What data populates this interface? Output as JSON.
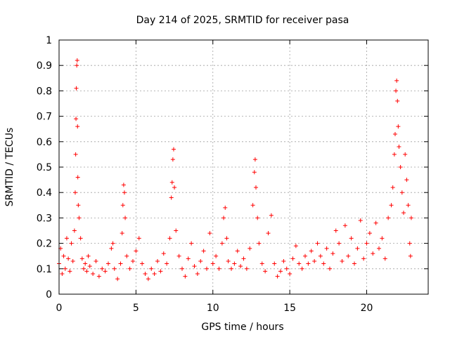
{
  "chart_data": {
    "type": "scatter",
    "title": "Day 214 of 2025, SRMTID for receiver pasa",
    "xlabel": "GPS time / hours",
    "ylabel": "SRMTID / TECUs",
    "xlim": [
      0,
      24
    ],
    "ylim": [
      0,
      1
    ],
    "xticks": [
      0,
      5,
      10,
      15,
      20
    ],
    "xtick_labels": [
      "0",
      "5",
      "10",
      "15",
      "20"
    ],
    "yticks": [
      0,
      0.1,
      0.2,
      0.3,
      0.4,
      0.5,
      0.6,
      0.7,
      0.8,
      0.9,
      1
    ],
    "ytick_labels": [
      "0",
      "0.1",
      "0.2",
      "0.3",
      "0.4",
      "0.5",
      "0.6",
      "0.7",
      "0.8",
      "0.9",
      "1"
    ],
    "grid": true,
    "marker": "+",
    "color": "#ff0000",
    "series": [
      {
        "name": "SRMTID",
        "points": [
          [
            0.0,
            0.12
          ],
          [
            0.1,
            0.18
          ],
          [
            0.2,
            0.08
          ],
          [
            0.3,
            0.15
          ],
          [
            0.4,
            0.1
          ],
          [
            0.5,
            0.22
          ],
          [
            0.6,
            0.14
          ],
          [
            0.7,
            0.09
          ],
          [
            0.8,
            0.2
          ],
          [
            0.9,
            0.13
          ],
          [
            1.0,
            0.25
          ],
          [
            1.05,
            0.4
          ],
          [
            1.08,
            0.55
          ],
          [
            1.1,
            0.69
          ],
          [
            1.12,
            0.81
          ],
          [
            1.15,
            0.9
          ],
          [
            1.18,
            0.92
          ],
          [
            1.2,
            0.66
          ],
          [
            1.22,
            0.46
          ],
          [
            1.25,
            0.35
          ],
          [
            1.3,
            0.3
          ],
          [
            1.4,
            0.22
          ],
          [
            1.5,
            0.14
          ],
          [
            1.6,
            0.1
          ],
          [
            1.7,
            0.12
          ],
          [
            1.8,
            0.09
          ],
          [
            1.9,
            0.15
          ],
          [
            2.0,
            0.11
          ],
          [
            2.2,
            0.08
          ],
          [
            2.4,
            0.13
          ],
          [
            2.6,
            0.07
          ],
          [
            2.8,
            0.1
          ],
          [
            3.0,
            0.09
          ],
          [
            3.2,
            0.12
          ],
          [
            3.4,
            0.18
          ],
          [
            3.5,
            0.2
          ],
          [
            3.6,
            0.1
          ],
          [
            3.8,
            0.06
          ],
          [
            4.0,
            0.12
          ],
          [
            4.1,
            0.24
          ],
          [
            4.15,
            0.35
          ],
          [
            4.2,
            0.43
          ],
          [
            4.25,
            0.4
          ],
          [
            4.3,
            0.3
          ],
          [
            4.4,
            0.15
          ],
          [
            4.6,
            0.1
          ],
          [
            4.8,
            0.13
          ],
          [
            5.0,
            0.17
          ],
          [
            5.2,
            0.22
          ],
          [
            5.4,
            0.12
          ],
          [
            5.6,
            0.08
          ],
          [
            5.8,
            0.06
          ],
          [
            6.0,
            0.1
          ],
          [
            6.2,
            0.08
          ],
          [
            6.4,
            0.13
          ],
          [
            6.6,
            0.09
          ],
          [
            6.8,
            0.16
          ],
          [
            7.0,
            0.12
          ],
          [
            7.2,
            0.22
          ],
          [
            7.3,
            0.38
          ],
          [
            7.35,
            0.44
          ],
          [
            7.4,
            0.53
          ],
          [
            7.45,
            0.57
          ],
          [
            7.5,
            0.42
          ],
          [
            7.6,
            0.25
          ],
          [
            7.8,
            0.15
          ],
          [
            8.0,
            0.1
          ],
          [
            8.2,
            0.07
          ],
          [
            8.4,
            0.14
          ],
          [
            8.6,
            0.2
          ],
          [
            8.8,
            0.11
          ],
          [
            9.0,
            0.08
          ],
          [
            9.2,
            0.13
          ],
          [
            9.4,
            0.17
          ],
          [
            9.6,
            0.1
          ],
          [
            9.8,
            0.24
          ],
          [
            10.0,
            0.12
          ],
          [
            10.2,
            0.15
          ],
          [
            10.4,
            0.1
          ],
          [
            10.6,
            0.2
          ],
          [
            10.7,
            0.3
          ],
          [
            10.8,
            0.34
          ],
          [
            10.9,
            0.22
          ],
          [
            11.0,
            0.13
          ],
          [
            11.2,
            0.1
          ],
          [
            11.4,
            0.12
          ],
          [
            11.6,
            0.17
          ],
          [
            11.8,
            0.11
          ],
          [
            12.0,
            0.14
          ],
          [
            12.2,
            0.1
          ],
          [
            12.4,
            0.18
          ],
          [
            12.6,
            0.35
          ],
          [
            12.7,
            0.48
          ],
          [
            12.75,
            0.53
          ],
          [
            12.8,
            0.42
          ],
          [
            12.9,
            0.3
          ],
          [
            13.0,
            0.2
          ],
          [
            13.2,
            0.12
          ],
          [
            13.4,
            0.09
          ],
          [
            13.6,
            0.24
          ],
          [
            13.8,
            0.31
          ],
          [
            14.0,
            0.12
          ],
          [
            14.2,
            0.07
          ],
          [
            14.4,
            0.09
          ],
          [
            14.6,
            0.13
          ],
          [
            14.8,
            0.1
          ],
          [
            15.0,
            0.08
          ],
          [
            15.2,
            0.14
          ],
          [
            15.4,
            0.19
          ],
          [
            15.6,
            0.12
          ],
          [
            15.8,
            0.1
          ],
          [
            16.0,
            0.15
          ],
          [
            16.2,
            0.12
          ],
          [
            16.4,
            0.17
          ],
          [
            16.6,
            0.13
          ],
          [
            16.8,
            0.2
          ],
          [
            17.0,
            0.15
          ],
          [
            17.2,
            0.12
          ],
          [
            17.4,
            0.18
          ],
          [
            17.6,
            0.1
          ],
          [
            17.8,
            0.16
          ],
          [
            18.0,
            0.25
          ],
          [
            18.2,
            0.2
          ],
          [
            18.4,
            0.13
          ],
          [
            18.6,
            0.27
          ],
          [
            18.8,
            0.15
          ],
          [
            19.0,
            0.22
          ],
          [
            19.2,
            0.12
          ],
          [
            19.4,
            0.18
          ],
          [
            19.6,
            0.29
          ],
          [
            19.8,
            0.14
          ],
          [
            20.0,
            0.2
          ],
          [
            20.2,
            0.24
          ],
          [
            20.4,
            0.16
          ],
          [
            20.6,
            0.28
          ],
          [
            20.8,
            0.18
          ],
          [
            21.0,
            0.22
          ],
          [
            21.2,
            0.14
          ],
          [
            21.4,
            0.3
          ],
          [
            21.6,
            0.35
          ],
          [
            21.7,
            0.42
          ],
          [
            21.8,
            0.55
          ],
          [
            21.85,
            0.63
          ],
          [
            21.9,
            0.8
          ],
          [
            21.95,
            0.84
          ],
          [
            22.0,
            0.76
          ],
          [
            22.05,
            0.66
          ],
          [
            22.1,
            0.58
          ],
          [
            22.2,
            0.5
          ],
          [
            22.3,
            0.4
          ],
          [
            22.4,
            0.32
          ],
          [
            22.5,
            0.55
          ],
          [
            22.6,
            0.45
          ],
          [
            22.7,
            0.35
          ],
          [
            22.8,
            0.2
          ],
          [
            22.85,
            0.15
          ],
          [
            22.9,
            0.3
          ]
        ]
      }
    ]
  }
}
